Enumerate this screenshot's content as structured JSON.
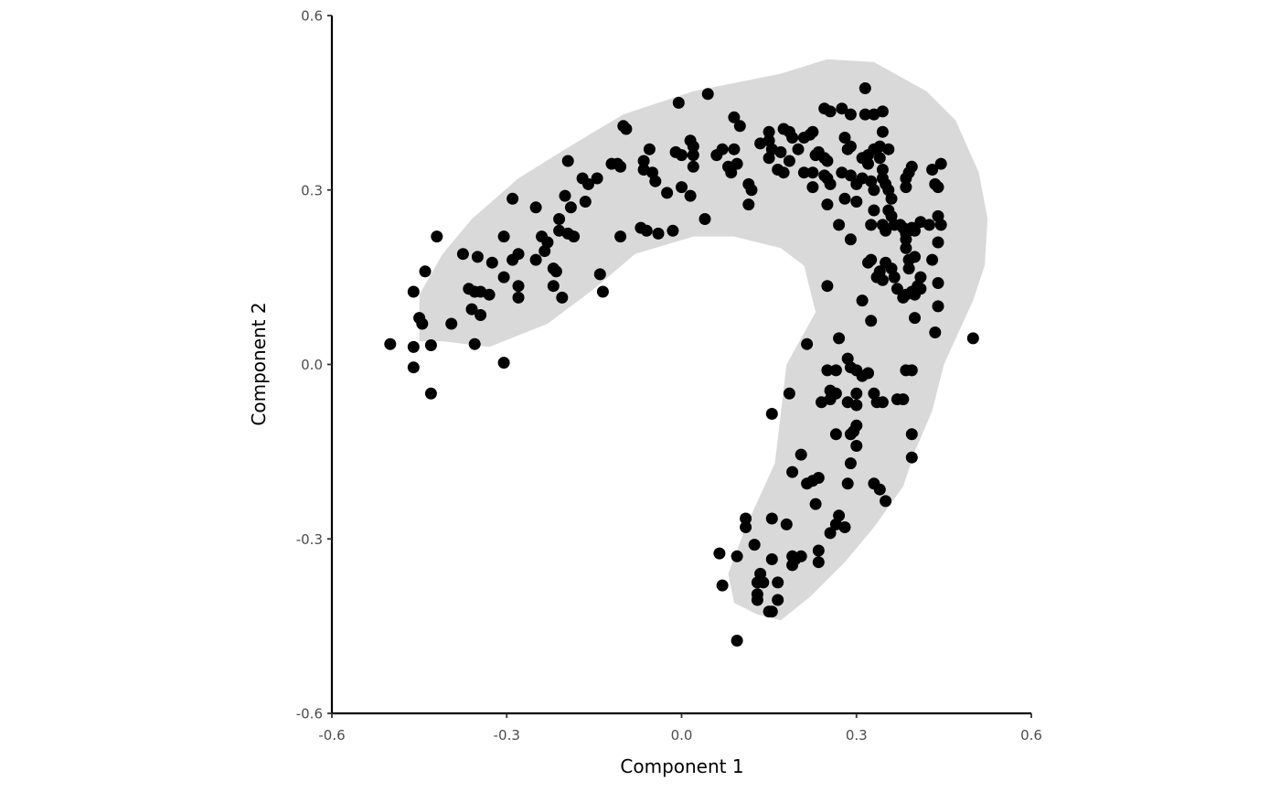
{
  "chart_data": {
    "type": "scatter",
    "title": "",
    "xlabel": "Component 1",
    "ylabel": "Component 2",
    "xlim": [
      -0.6,
      0.6
    ],
    "ylim": [
      -0.6,
      0.6
    ],
    "x_ticks": [
      -0.6,
      -0.3,
      0.0,
      0.3,
      0.6
    ],
    "x_tick_labels": [
      "-0.6",
      "-0.3",
      "0.0",
      "0.3",
      "0.6"
    ],
    "y_ticks": [
      -0.6,
      -0.3,
      0.0,
      0.3,
      0.6
    ],
    "y_tick_labels": [
      "-0.6",
      "-0.3",
      "0.0",
      "0.3",
      "0.6"
    ],
    "grid": false,
    "colors": {
      "points": "#000000",
      "region": "#d9d9d9",
      "axis": "#000000",
      "tick_text": "#4d4d4d"
    },
    "region_outline": [
      [
        -0.45,
        0.04
      ],
      [
        -0.41,
        0.04
      ],
      [
        -0.33,
        0.03
      ],
      [
        -0.23,
        0.07
      ],
      [
        -0.15,
        0.13
      ],
      [
        -0.08,
        0.19
      ],
      [
        0.02,
        0.22
      ],
      [
        0.09,
        0.22
      ],
      [
        0.17,
        0.2
      ],
      [
        0.21,
        0.17
      ],
      [
        0.23,
        0.09
      ],
      [
        0.18,
        0.0
      ],
      [
        0.16,
        -0.17
      ],
      [
        0.11,
        -0.28
      ],
      [
        0.08,
        -0.36
      ],
      [
        0.09,
        -0.41
      ],
      [
        0.13,
        -0.43
      ],
      [
        0.17,
        -0.44
      ],
      [
        0.22,
        -0.4
      ],
      [
        0.28,
        -0.34
      ],
      [
        0.33,
        -0.28
      ],
      [
        0.38,
        -0.21
      ],
      [
        0.4,
        -0.15
      ],
      [
        0.43,
        -0.08
      ],
      [
        0.45,
        0.0
      ],
      [
        0.5,
        0.11
      ],
      [
        0.52,
        0.17
      ],
      [
        0.525,
        0.25
      ],
      [
        0.51,
        0.33
      ],
      [
        0.47,
        0.42
      ],
      [
        0.42,
        0.47
      ],
      [
        0.33,
        0.52
      ],
      [
        0.25,
        0.525
      ],
      [
        0.17,
        0.5
      ],
      [
        0.02,
        0.47
      ],
      [
        -0.1,
        0.43
      ],
      [
        -0.2,
        0.37
      ],
      [
        -0.28,
        0.32
      ],
      [
        -0.36,
        0.25
      ],
      [
        -0.41,
        0.19
      ],
      [
        -0.45,
        0.12
      ]
    ],
    "points": [
      [
        -0.5,
        0.035
      ],
      [
        -0.46,
        0.03
      ],
      [
        -0.46,
        -0.005
      ],
      [
        -0.43,
        0.033
      ],
      [
        -0.43,
        -0.05
      ],
      [
        -0.445,
        0.07
      ],
      [
        -0.45,
        0.08
      ],
      [
        -0.46,
        0.125
      ],
      [
        -0.44,
        0.16
      ],
      [
        -0.42,
        0.22
      ],
      [
        -0.395,
        0.07
      ],
      [
        -0.375,
        0.19
      ],
      [
        -0.35,
        0.185
      ],
      [
        -0.365,
        0.13
      ],
      [
        -0.355,
        0.125
      ],
      [
        -0.345,
        0.125
      ],
      [
        -0.33,
        0.12
      ],
      [
        -0.36,
        0.095
      ],
      [
        -0.345,
        0.085
      ],
      [
        -0.355,
        0.035
      ],
      [
        -0.325,
        0.175
      ],
      [
        -0.305,
        0.22
      ],
      [
        -0.29,
        0.18
      ],
      [
        -0.28,
        0.19
      ],
      [
        -0.305,
        0.15
      ],
      [
        -0.28,
        0.135
      ],
      [
        -0.28,
        0.115
      ],
      [
        -0.305,
        0.003
      ],
      [
        -0.29,
        0.285
      ],
      [
        -0.25,
        0.27
      ],
      [
        -0.24,
        0.22
      ],
      [
        -0.23,
        0.21
      ],
      [
        -0.235,
        0.195
      ],
      [
        -0.25,
        0.18
      ],
      [
        -0.22,
        0.165
      ],
      [
        -0.215,
        0.16
      ],
      [
        -0.22,
        0.135
      ],
      [
        -0.205,
        0.115
      ],
      [
        -0.21,
        0.25
      ],
      [
        -0.2,
        0.29
      ],
      [
        -0.21,
        0.23
      ],
      [
        -0.195,
        0.225
      ],
      [
        -0.185,
        0.22
      ],
      [
        -0.19,
        0.27
      ],
      [
        -0.195,
        0.35
      ],
      [
        -0.17,
        0.32
      ],
      [
        -0.16,
        0.31
      ],
      [
        -0.165,
        0.28
      ],
      [
        -0.145,
        0.32
      ],
      [
        -0.14,
        0.155
      ],
      [
        -0.135,
        0.125
      ],
      [
        -0.12,
        0.345
      ],
      [
        -0.11,
        0.345
      ],
      [
        -0.105,
        0.34
      ],
      [
        -0.1,
        0.41
      ],
      [
        -0.095,
        0.405
      ],
      [
        -0.105,
        0.22
      ],
      [
        -0.07,
        0.235
      ],
      [
        -0.06,
        0.23
      ],
      [
        -0.04,
        0.225
      ],
      [
        -0.065,
        0.35
      ],
      [
        -0.065,
        0.335
      ],
      [
        -0.05,
        0.33
      ],
      [
        -0.045,
        0.315
      ],
      [
        -0.055,
        0.37
      ],
      [
        -0.025,
        0.295
      ],
      [
        -0.015,
        0.23
      ],
      [
        -0.01,
        0.365
      ],
      [
        -0.005,
        0.45
      ],
      [
        0.0,
        0.36
      ],
      [
        0.0,
        0.305
      ],
      [
        0.015,
        0.385
      ],
      [
        0.02,
        0.375
      ],
      [
        0.02,
        0.36
      ],
      [
        0.02,
        0.34
      ],
      [
        0.015,
        0.29
      ],
      [
        0.04,
        0.25
      ],
      [
        0.045,
        0.465
      ],
      [
        0.06,
        0.36
      ],
      [
        0.07,
        0.37
      ],
      [
        0.08,
        0.34
      ],
      [
        0.085,
        0.33
      ],
      [
        0.09,
        0.37
      ],
      [
        0.095,
        0.345
      ],
      [
        0.09,
        0.425
      ],
      [
        0.1,
        0.41
      ],
      [
        0.115,
        0.31
      ],
      [
        0.12,
        0.3
      ],
      [
        0.115,
        0.275
      ],
      [
        0.135,
        0.38
      ],
      [
        0.15,
        0.4
      ],
      [
        0.15,
        0.385
      ],
      [
        0.155,
        0.37
      ],
      [
        0.15,
        0.355
      ],
      [
        0.165,
        0.335
      ],
      [
        0.175,
        0.33
      ],
      [
        0.17,
        0.365
      ],
      [
        0.175,
        0.405
      ],
      [
        0.185,
        0.4
      ],
      [
        0.19,
        0.39
      ],
      [
        0.185,
        0.35
      ],
      [
        0.2,
        0.37
      ],
      [
        0.21,
        0.33
      ],
      [
        0.21,
        0.39
      ],
      [
        0.22,
        0.395
      ],
      [
        0.225,
        0.4
      ],
      [
        0.23,
        0.36
      ],
      [
        0.225,
        0.33
      ],
      [
        0.225,
        0.305
      ],
      [
        0.235,
        0.365
      ],
      [
        0.245,
        0.355
      ],
      [
        0.25,
        0.35
      ],
      [
        0.245,
        0.325
      ],
      [
        0.25,
        0.32
      ],
      [
        0.255,
        0.31
      ],
      [
        0.25,
        0.275
      ],
      [
        0.245,
        0.44
      ],
      [
        0.255,
        0.435
      ],
      [
        0.275,
        0.44
      ],
      [
        0.29,
        0.43
      ],
      [
        0.28,
        0.39
      ],
      [
        0.285,
        0.37
      ],
      [
        0.29,
        0.375
      ],
      [
        0.275,
        0.33
      ],
      [
        0.29,
        0.325
      ],
      [
        0.3,
        0.31
      ],
      [
        0.28,
        0.285
      ],
      [
        0.3,
        0.28
      ],
      [
        0.27,
        0.24
      ],
      [
        0.29,
        0.215
      ],
      [
        0.315,
        0.475
      ],
      [
        0.315,
        0.43
      ],
      [
        0.33,
        0.43
      ],
      [
        0.345,
        0.435
      ],
      [
        0.345,
        0.4
      ],
      [
        0.34,
        0.375
      ],
      [
        0.33,
        0.37
      ],
      [
        0.32,
        0.36
      ],
      [
        0.31,
        0.355
      ],
      [
        0.32,
        0.345
      ],
      [
        0.31,
        0.32
      ],
      [
        0.33,
        0.3
      ],
      [
        0.325,
        0.315
      ],
      [
        0.345,
        0.32
      ],
      [
        0.35,
        0.31
      ],
      [
        0.355,
        0.3
      ],
      [
        0.36,
        0.285
      ],
      [
        0.355,
        0.265
      ],
      [
        0.345,
        0.335
      ],
      [
        0.34,
        0.355
      ],
      [
        0.355,
        0.37
      ],
      [
        0.33,
        0.265
      ],
      [
        0.325,
        0.24
      ],
      [
        0.345,
        0.24
      ],
      [
        0.35,
        0.23
      ],
      [
        0.365,
        0.24
      ],
      [
        0.36,
        0.255
      ],
      [
        0.375,
        0.24
      ],
      [
        0.38,
        0.235
      ],
      [
        0.385,
        0.225
      ],
      [
        0.385,
        0.215
      ],
      [
        0.385,
        0.2
      ],
      [
        0.39,
        0.18
      ],
      [
        0.39,
        0.165
      ],
      [
        0.385,
        0.305
      ],
      [
        0.385,
        0.32
      ],
      [
        0.39,
        0.33
      ],
      [
        0.395,
        0.34
      ],
      [
        0.4,
        0.23
      ],
      [
        0.395,
        0.235
      ],
      [
        0.41,
        0.245
      ],
      [
        0.425,
        0.24
      ],
      [
        0.43,
        0.335
      ],
      [
        0.435,
        0.31
      ],
      [
        0.44,
        0.305
      ],
      [
        0.445,
        0.345
      ],
      [
        0.445,
        0.24
      ],
      [
        0.44,
        0.255
      ],
      [
        0.44,
        0.21
      ],
      [
        0.43,
        0.18
      ],
      [
        0.44,
        0.14
      ],
      [
        0.44,
        0.1
      ],
      [
        0.435,
        0.055
      ],
      [
        0.32,
        0.175
      ],
      [
        0.325,
        0.18
      ],
      [
        0.335,
        0.15
      ],
      [
        0.34,
        0.16
      ],
      [
        0.345,
        0.145
      ],
      [
        0.35,
        0.175
      ],
      [
        0.36,
        0.165
      ],
      [
        0.365,
        0.15
      ],
      [
        0.37,
        0.13
      ],
      [
        0.38,
        0.115
      ],
      [
        0.385,
        0.12
      ],
      [
        0.395,
        0.125
      ],
      [
        0.4,
        0.12
      ],
      [
        0.405,
        0.135
      ],
      [
        0.41,
        0.13
      ],
      [
        0.4,
        0.185
      ],
      [
        0.41,
        0.15
      ],
      [
        0.4,
        0.08
      ],
      [
        0.31,
        0.11
      ],
      [
        0.325,
        0.075
      ],
      [
        0.25,
        0.135
      ],
      [
        0.5,
        0.045
      ],
      [
        0.27,
        0.045
      ],
      [
        0.215,
        0.035
      ],
      [
        0.285,
        0.01
      ],
      [
        0.25,
        -0.01
      ],
      [
        0.265,
        -0.01
      ],
      [
        0.29,
        -0.005
      ],
      [
        0.3,
        -0.01
      ],
      [
        0.31,
        -0.02
      ],
      [
        0.32,
        -0.015
      ],
      [
        0.255,
        -0.045
      ],
      [
        0.265,
        -0.05
      ],
      [
        0.24,
        -0.065
      ],
      [
        0.255,
        -0.06
      ],
      [
        0.285,
        -0.065
      ],
      [
        0.3,
        -0.05
      ],
      [
        0.3,
        -0.07
      ],
      [
        0.33,
        -0.05
      ],
      [
        0.335,
        -0.065
      ],
      [
        0.345,
        -0.065
      ],
      [
        0.37,
        -0.06
      ],
      [
        0.38,
        -0.06
      ],
      [
        0.385,
        -0.01
      ],
      [
        0.395,
        -0.01
      ],
      [
        0.185,
        -0.05
      ],
      [
        0.155,
        -0.085
      ],
      [
        0.265,
        -0.12
      ],
      [
        0.29,
        -0.12
      ],
      [
        0.295,
        -0.115
      ],
      [
        0.3,
        -0.105
      ],
      [
        0.3,
        -0.14
      ],
      [
        0.29,
        -0.17
      ],
      [
        0.395,
        -0.12
      ],
      [
        0.395,
        -0.16
      ],
      [
        0.205,
        -0.155
      ],
      [
        0.19,
        -0.185
      ],
      [
        0.215,
        -0.205
      ],
      [
        0.225,
        -0.2
      ],
      [
        0.235,
        -0.195
      ],
      [
        0.285,
        -0.205
      ],
      [
        0.33,
        -0.205
      ],
      [
        0.34,
        -0.215
      ],
      [
        0.35,
        -0.235
      ],
      [
        0.23,
        -0.24
      ],
      [
        0.27,
        -0.26
      ],
      [
        0.265,
        -0.275
      ],
      [
        0.255,
        -0.29
      ],
      [
        0.28,
        -0.28
      ],
      [
        0.11,
        -0.265
      ],
      [
        0.11,
        -0.28
      ],
      [
        0.155,
        -0.265
      ],
      [
        0.18,
        -0.275
      ],
      [
        0.125,
        -0.31
      ],
      [
        0.065,
        -0.325
      ],
      [
        0.095,
        -0.33
      ],
      [
        0.155,
        -0.335
      ],
      [
        0.19,
        -0.33
      ],
      [
        0.195,
        -0.335
      ],
      [
        0.205,
        -0.33
      ],
      [
        0.235,
        -0.32
      ],
      [
        0.235,
        -0.34
      ],
      [
        0.19,
        -0.345
      ],
      [
        0.135,
        -0.36
      ],
      [
        0.13,
        -0.375
      ],
      [
        0.14,
        -0.375
      ],
      [
        0.165,
        -0.375
      ],
      [
        0.07,
        -0.38
      ],
      [
        0.13,
        -0.395
      ],
      [
        0.13,
        -0.405
      ],
      [
        0.165,
        -0.405
      ],
      [
        0.15,
        -0.425
      ],
      [
        0.155,
        -0.425
      ],
      [
        0.095,
        -0.475
      ]
    ]
  }
}
